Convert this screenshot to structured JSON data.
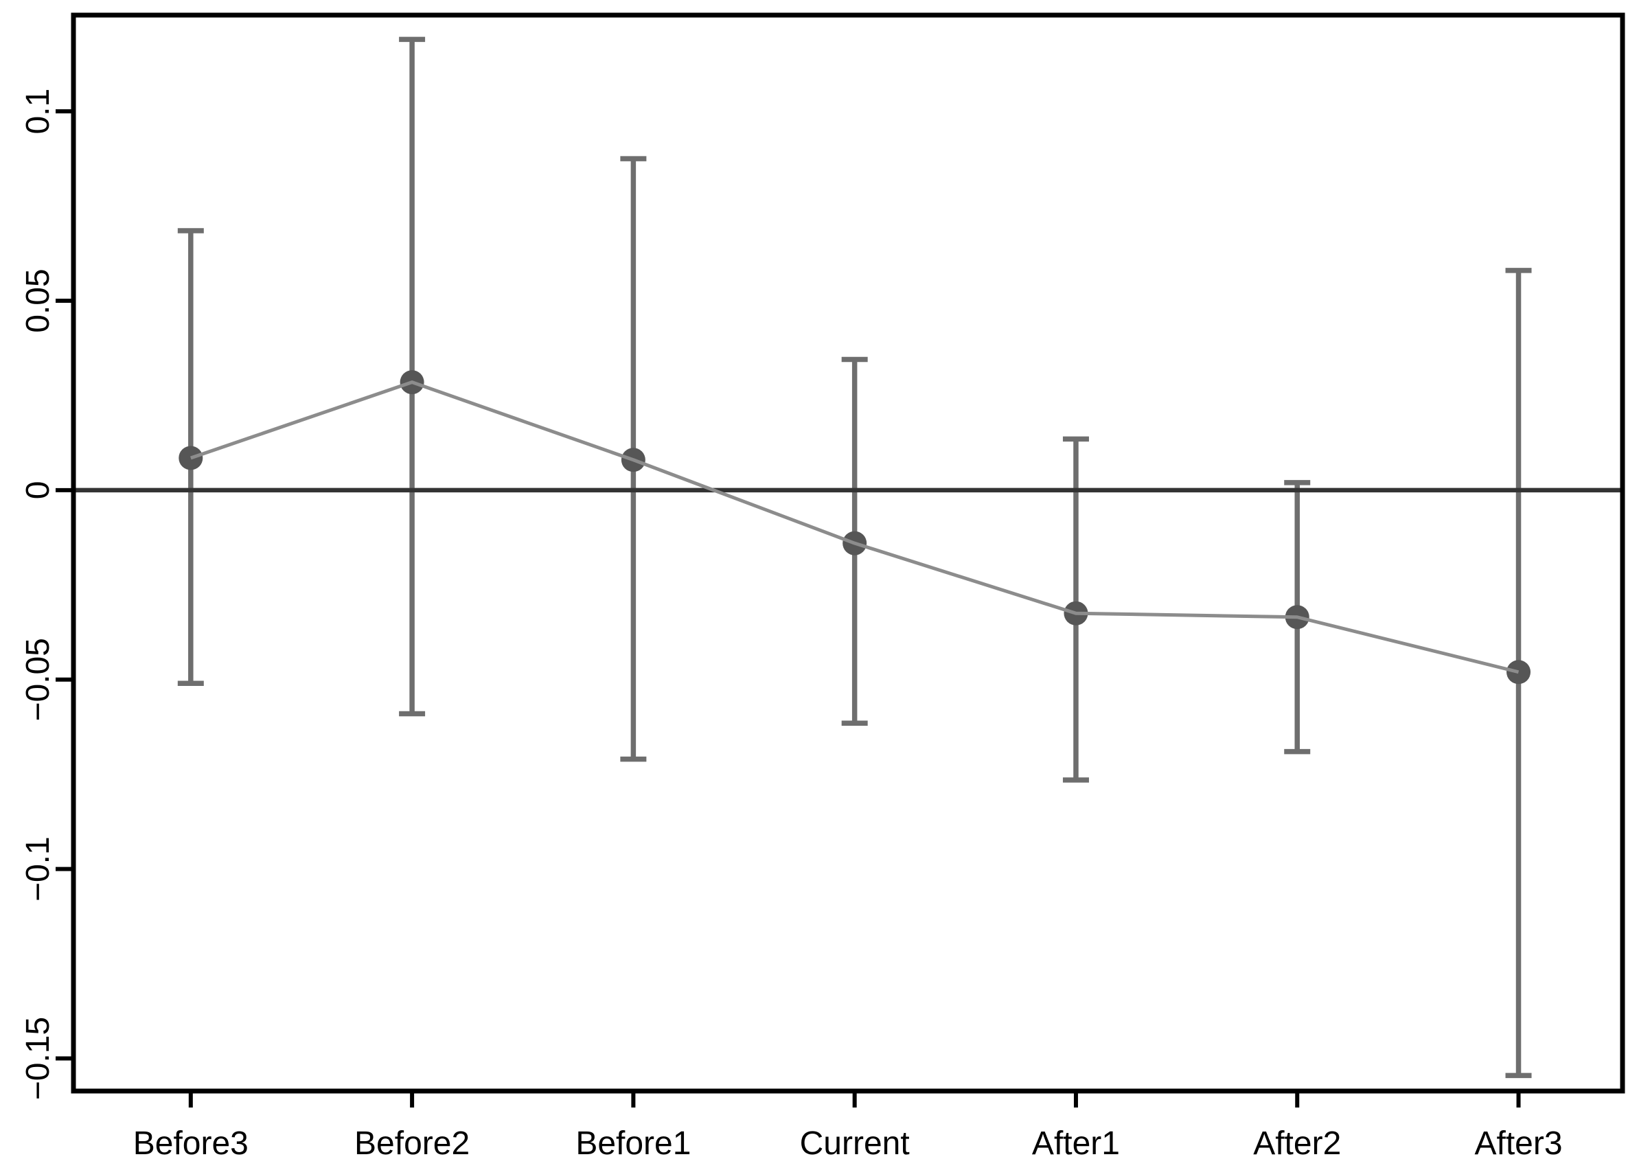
{
  "chart_data": {
    "type": "line",
    "subtype": "point-estimates-with-confidence-intervals",
    "title": "",
    "xlabel": "",
    "ylabel": "",
    "categories": [
      "Before3",
      "Before2",
      "Before1",
      "Current",
      "After1",
      "After2",
      "After3"
    ],
    "series": [
      {
        "name": "estimate",
        "values": [
          0.0085,
          0.0285,
          0.008,
          -0.014,
          -0.0325,
          -0.0335,
          -0.048
        ]
      },
      {
        "name": "ci_lower",
        "values": [
          -0.051,
          -0.059,
          -0.071,
          -0.0615,
          -0.0765,
          -0.069,
          -0.1545
        ]
      },
      {
        "name": "ci_upper",
        "values": [
          0.0685,
          0.119,
          0.0875,
          0.0345,
          0.0135,
          0.002,
          0.058
        ]
      }
    ],
    "ylim": [
      -0.1586,
      0.1254
    ],
    "yticks": [
      0.1,
      0.05,
      0,
      -0.05,
      -0.1,
      -0.15
    ],
    "ytick_labels": [
      "0.1",
      "0.05",
      "0",
      "−0.05",
      "−0.1",
      "−0.15"
    ],
    "zero_line": 0,
    "grid": "off",
    "legend": "none",
    "box": "full-border",
    "colors": {
      "background": "#ffffff",
      "axis": "#000000",
      "text": "#000000",
      "zero_line": "#333333",
      "error_bar": "#6e6e6e",
      "connector": "#8c8c8c",
      "marker": "#565656"
    }
  }
}
